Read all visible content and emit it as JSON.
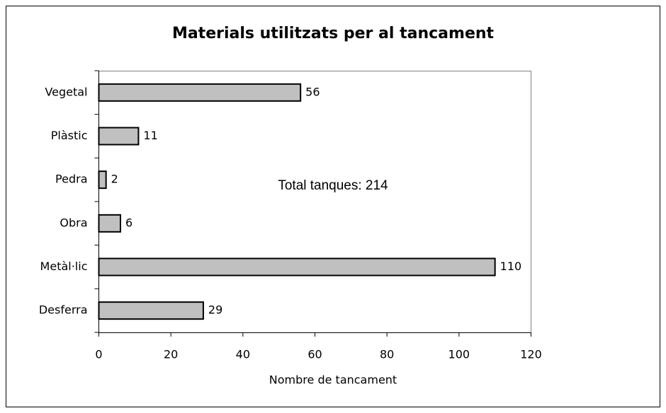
{
  "chart_data": {
    "type": "bar",
    "orientation": "horizontal",
    "title": "Materials utilitzats per al tancament",
    "categories": [
      "Vegetal",
      "Plàstic",
      "Pedra",
      "Obra",
      "Metàl·lic",
      "Desferra"
    ],
    "values": [
      56,
      11,
      2,
      6,
      110,
      29
    ],
    "color": "#c0c0c0",
    "xlabel": "Nombre de tancament",
    "annotation": "Total tanques: 214",
    "xlim": [
      0,
      120
    ],
    "xticks": [
      0,
      20,
      40,
      60,
      80,
      100,
      120
    ],
    "grid": false
  }
}
